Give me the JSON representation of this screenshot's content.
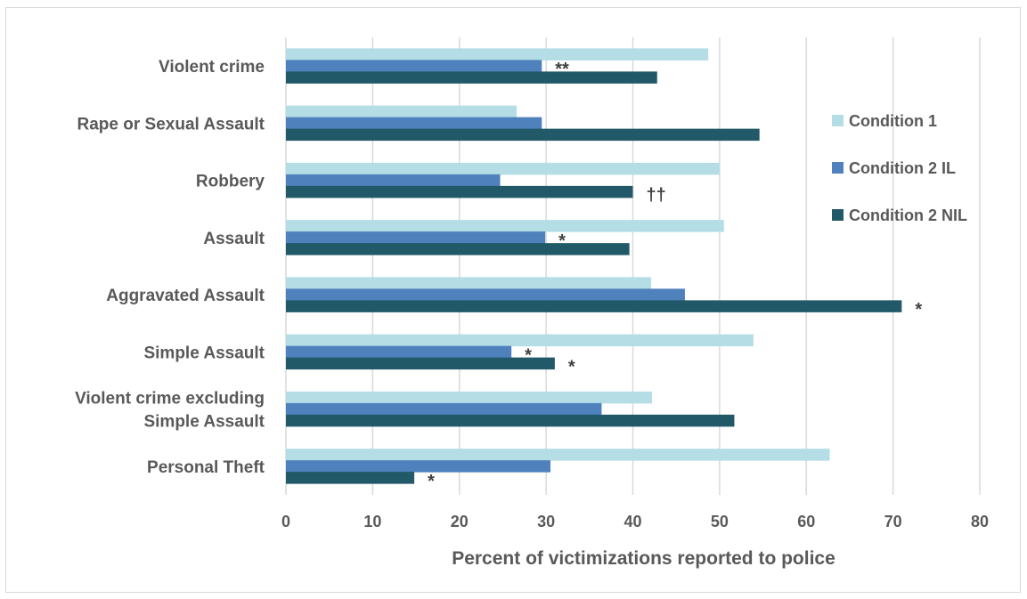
{
  "chart_data": {
    "type": "bar",
    "orientation": "horizontal",
    "categories": [
      [
        "Violent crime"
      ],
      [
        "Rape or Sexual Assault"
      ],
      [
        "Robbery"
      ],
      [
        "Assault"
      ],
      [
        "Aggravated Assault"
      ],
      [
        "Simple Assault"
      ],
      [
        "Violent crime excluding",
        "Simple Assault"
      ],
      [
        "Personal Theft"
      ]
    ],
    "series": [
      {
        "name": "Condition 1",
        "color": "#b4dde6",
        "values": [
          48.7,
          26.6,
          50.0,
          50.5,
          42.1,
          53.9,
          42.2,
          62.7
        ]
      },
      {
        "name": "Condition 2 IL",
        "color": "#4f81bd",
        "values": [
          29.5,
          29.5,
          24.7,
          29.9,
          46.0,
          26.0,
          36.4,
          30.5
        ]
      },
      {
        "name": "Condition 2 NIL",
        "color": "#215968",
        "values": [
          42.8,
          54.6,
          40.0,
          39.6,
          71.0,
          31.0,
          51.7,
          14.8
        ]
      }
    ],
    "annotations": [
      {
        "category": 0,
        "series": 1,
        "text": "**"
      },
      {
        "category": 2,
        "series": 2,
        "text": "††"
      },
      {
        "category": 3,
        "series": 1,
        "text": "*"
      },
      {
        "category": 4,
        "series": 2,
        "text": "*"
      },
      {
        "category": 5,
        "series": 1,
        "text": "*"
      },
      {
        "category": 5,
        "series": 2,
        "text": "*"
      },
      {
        "category": 7,
        "series": 2,
        "text": "*"
      }
    ],
    "xlabel": "Percent of victimizations reported to police",
    "ylabel": "",
    "xlim": [
      0,
      80
    ],
    "xticks": [
      "0",
      "10",
      "20",
      "30",
      "40",
      "50",
      "60",
      "70",
      "80"
    ],
    "grid": true,
    "legend_position": "right"
  }
}
